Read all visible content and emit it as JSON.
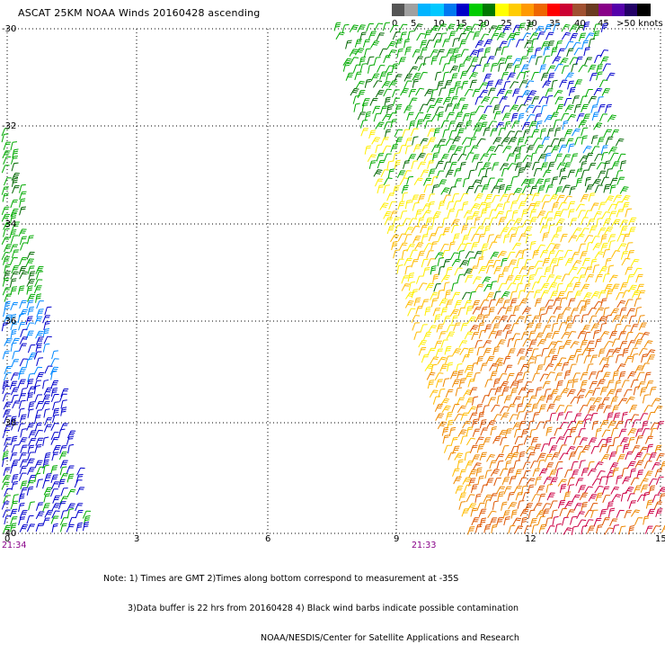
{
  "title": "ASCAT 25KM NOAA Winds 20160428 ascending",
  "legend": {
    "colors": [
      "#555555",
      "#a0a0a0",
      "#00b4ff",
      "#00c8ff",
      "#0078f0",
      "#0000c8",
      "#00cc00",
      "#007800",
      "#ffff00",
      "#ffcc00",
      "#ff9900",
      "#ee6600",
      "#ff0000",
      "#cc0033",
      "#a05030",
      "#6a3a20",
      "#880088",
      "#5500aa",
      "#220066",
      "#000000"
    ],
    "ticks": [
      "0",
      "5",
      "10",
      "15",
      "20",
      "25",
      "30",
      "35",
      "40",
      "45",
      ">50 knots"
    ]
  },
  "axes": {
    "lat_labels": [
      "-30",
      "-32",
      "-34",
      "-36",
      "-38",
      "-40"
    ],
    "lon_labels": [
      "0",
      "3",
      "6",
      "9",
      "12",
      "15"
    ],
    "time_labels": [
      "21:34",
      "21:33"
    ]
  },
  "notes": {
    "line1": "Note: 1) Times are GMT 2)Times along bottom correspond to measurement at -35S",
    "line2": "3)Data buffer is 22 hrs from 20160428 4) Black wind barbs indicate possible contamination",
    "line3": "NOAA/NESDIS/Center for Satellite Applications and Research"
  },
  "wind_colors": {
    "blue": "#0000cc",
    "lightblue": "#0088ff",
    "green": "#00aa00",
    "darkgreen": "#006600",
    "yellow": "#ffee00",
    "gold": "#ffbb00",
    "orange": "#ee8800",
    "darkorange": "#dd5500",
    "red": "#cc0044"
  }
}
